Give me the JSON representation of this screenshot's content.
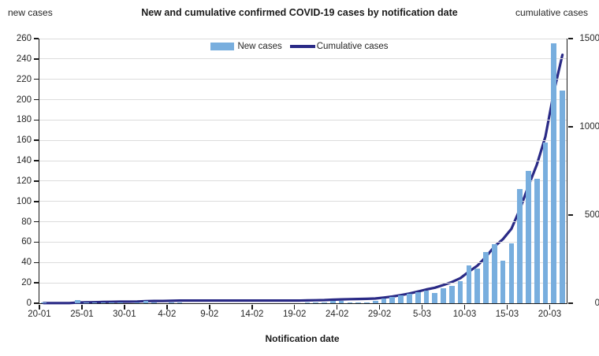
{
  "title": "New and cumulative confirmed COVID-19 cases by notification date",
  "left_axis_title": "new cases",
  "right_axis_title": "cumulative cases",
  "x_axis_title": "Notification date",
  "legend": {
    "new_cases": "New cases",
    "cumulative_cases": "Cumulative cases"
  },
  "colors": {
    "bar": "#78AEDE",
    "line": "#2A2A86",
    "grid": "#DCDCDC",
    "axis": "#1A1A1A",
    "text": "#262626"
  },
  "chart_data": {
    "type": "bar",
    "subtype": "bar-with-line-overlay",
    "grid": "horizontal",
    "legend_position": "top-center",
    "categories": [
      "20-01",
      "21-01",
      "22-01",
      "23-01",
      "24-01",
      "25-01",
      "26-01",
      "27-01",
      "28-01",
      "29-01",
      "30-01",
      "31-01",
      "1-02",
      "2-02",
      "3-02",
      "4-02",
      "5-02",
      "6-02",
      "7-02",
      "8-02",
      "9-02",
      "10-02",
      "11-02",
      "12-02",
      "13-02",
      "14-02",
      "15-02",
      "16-02",
      "17-02",
      "18-02",
      "19-02",
      "20-02",
      "21-02",
      "22-02",
      "23-02",
      "24-02",
      "25-02",
      "26-02",
      "27-02",
      "28-02",
      "29-02",
      "1-03",
      "2-03",
      "3-03",
      "4-03",
      "5-03",
      "6-03",
      "7-03",
      "8-03",
      "9-03",
      "10-03",
      "11-03",
      "12-03",
      "13-03",
      "14-03",
      "15-03",
      "16-03",
      "17-03",
      "18-03",
      "19-03",
      "20-03",
      "21-03"
    ],
    "series": [
      {
        "name": "New cases",
        "type": "bar",
        "axis": "left",
        "values": [
          1,
          0,
          0,
          0,
          3,
          1,
          1,
          1,
          1,
          1,
          0,
          1,
          2,
          1,
          0,
          1,
          1,
          0,
          0,
          0,
          0,
          0,
          0,
          0,
          0,
          0,
          0,
          0,
          0,
          0,
          0,
          1,
          1,
          1,
          2,
          2,
          1,
          1,
          1,
          2,
          5,
          6,
          8,
          9,
          11,
          12,
          10,
          15,
          17,
          22,
          37,
          34,
          50,
          58,
          42,
          59,
          112,
          130,
          122,
          158,
          255,
          209
        ]
      },
      {
        "name": "Cumulative cases",
        "type": "line",
        "axis": "right",
        "values": [
          1,
          1,
          1,
          1,
          4,
          5,
          6,
          7,
          8,
          9,
          9,
          10,
          12,
          13,
          13,
          14,
          15,
          15,
          15,
          15,
          15,
          15,
          15,
          15,
          15,
          15,
          15,
          15,
          15,
          15,
          15,
          16,
          17,
          18,
          20,
          22,
          23,
          24,
          25,
          27,
          32,
          38,
          46,
          55,
          66,
          78,
          88,
          103,
          120,
          142,
          179,
          213,
          263,
          321,
          363,
          422,
          534,
          664,
          786,
          944,
          1199,
          1408
        ]
      }
    ],
    "left_ylim": [
      0,
      260
    ],
    "left_tick_step": 20,
    "right_ylim": [
      0,
      1500
    ],
    "right_ticks": [
      0,
      500,
      1000,
      1500
    ],
    "x_tick_every": 5,
    "x_tick_labels": [
      "20-01",
      "25-01",
      "30-01",
      "4-02",
      "9-02",
      "14-02",
      "19-02",
      "24-02",
      "29-02",
      "5-03",
      "10-03",
      "15-03",
      "20-03"
    ]
  }
}
